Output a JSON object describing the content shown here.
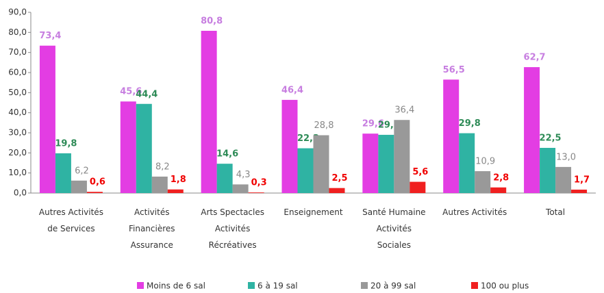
{
  "chart_data": {
    "type": "bar",
    "categories": [
      "Autres Activités de Services",
      "Activités Financières Assurance",
      "Arts Spectacles Activités Récréatives",
      "Enseignement",
      "Santé Humaine Activités Sociales",
      "Autres Activités",
      "Total"
    ],
    "series": [
      {
        "name": "Moins de 6 sal",
        "color": "#e33de3",
        "label_color": "#c77ee0",
        "values": [
          73.4,
          45.6,
          80.8,
          46.4,
          29.6,
          56.5,
          62.7
        ],
        "value_labels": [
          "73,4",
          "45,6",
          "80,8",
          "46,4",
          "29,6",
          "56,5",
          "62,7"
        ]
      },
      {
        "name": "6 à 19 sal",
        "color": "#2fb3a3",
        "label_color": "#2e8b57",
        "values": [
          19.8,
          44.4,
          14.6,
          22.3,
          29.0,
          29.8,
          22.5
        ],
        "value_labels": [
          "19,8",
          "44,4",
          "14,6",
          "22,3",
          "29,0",
          "29,8",
          "22,5"
        ]
      },
      {
        "name": "20 à 99 sal",
        "color": "#999999",
        "label_color": "#888888",
        "values": [
          6.2,
          8.2,
          4.3,
          28.8,
          36.4,
          10.9,
          13.0
        ],
        "value_labels": [
          "6,2",
          "8,2",
          "4,3",
          "28,8",
          "36,4",
          "10,9",
          "13,0"
        ]
      },
      {
        "name": "100 ou plus",
        "color": "#f02020",
        "label_color": "#f00000",
        "values": [
          0.6,
          1.8,
          0.3,
          2.5,
          5.6,
          2.8,
          1.7
        ],
        "value_labels": [
          "0,6",
          "1,8",
          "0,3",
          "2,5",
          "5,6",
          "2,8",
          "1,7"
        ]
      }
    ],
    "ylim": [
      0,
      90
    ],
    "yticks": [
      {
        "value": 0,
        "label": "0,0"
      },
      {
        "value": 10,
        "label": "10,0"
      },
      {
        "value": 20,
        "label": "20,0"
      },
      {
        "value": 30,
        "label": "30,0"
      },
      {
        "value": 40,
        "label": "40,0"
      },
      {
        "value": 50,
        "label": "50,0"
      },
      {
        "value": 60,
        "label": "60,0"
      },
      {
        "value": 70,
        "label": "70,0"
      },
      {
        "value": 80,
        "label": "80,0"
      },
      {
        "value": 90,
        "label": "90,0"
      }
    ],
    "grid": false,
    "legend": "bottom"
  }
}
